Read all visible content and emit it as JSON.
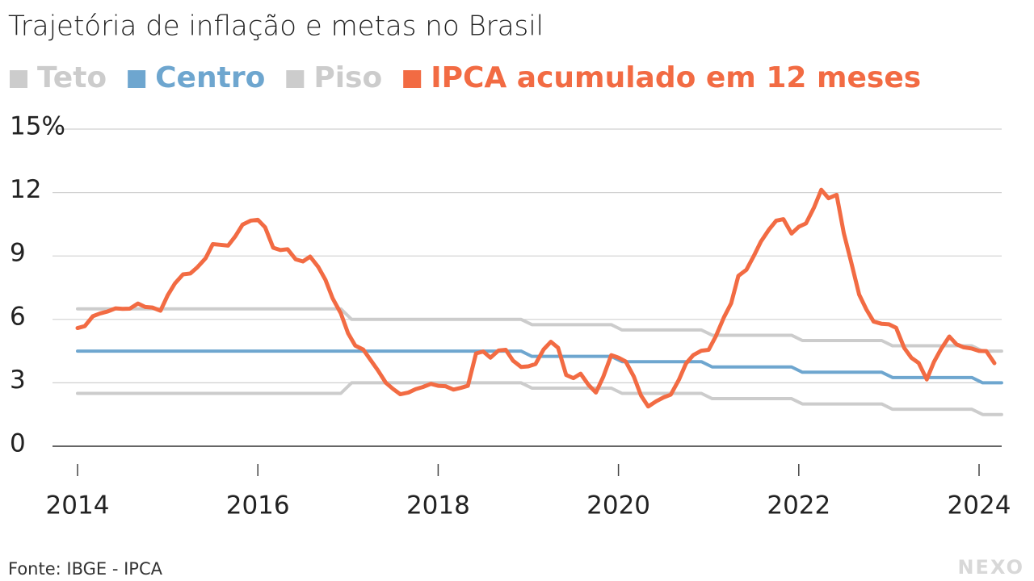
{
  "chart_data": {
    "type": "line",
    "title": "Trajetória de inflação e metas no Brasil",
    "source": "Fonte: IBGE - IPCA",
    "brand": "NEXO",
    "xlim": [
      2013.85,
      2024.35
    ],
    "xticks": [
      2014,
      2016,
      2018,
      2020,
      2022,
      2024
    ],
    "ylim": [
      0,
      15
    ],
    "yticks": [
      0,
      3,
      6,
      9,
      12,
      {
        "value": 15,
        "label": "15%"
      }
    ],
    "grid": true,
    "legend": "top",
    "series": [
      {
        "name": "Teto",
        "color": "#cccccc",
        "x": [
          2014,
          2016.92,
          2017.04,
          2018.92,
          2019.04,
          2019.92,
          2020.04,
          2020.92,
          2021.04,
          2021.92,
          2022.04,
          2022.92,
          2023.04,
          2023.92,
          2024.04,
          2024.25
        ],
        "values": [
          6.5,
          6.5,
          6,
          6,
          5.75,
          5.75,
          5.5,
          5.5,
          5.25,
          5.25,
          5,
          5,
          4.75,
          4.75,
          4.5,
          4.5
        ]
      },
      {
        "name": "Centro",
        "color": "#6ea6cf",
        "x": [
          2014,
          2016.92,
          2017.04,
          2018.92,
          2019.04,
          2019.92,
          2020.04,
          2020.92,
          2021.04,
          2021.92,
          2022.04,
          2022.92,
          2023.04,
          2023.92,
          2024.04,
          2024.25
        ],
        "values": [
          4.5,
          4.5,
          4.5,
          4.5,
          4.25,
          4.25,
          4,
          4,
          3.75,
          3.75,
          3.5,
          3.5,
          3.25,
          3.25,
          3,
          3
        ]
      },
      {
        "name": "Piso",
        "color": "#cccccc",
        "x": [
          2014,
          2016.92,
          2017.04,
          2018.92,
          2019.04,
          2019.92,
          2020.04,
          2020.92,
          2021.04,
          2021.92,
          2022.04,
          2022.92,
          2023.04,
          2023.92,
          2024.04,
          2024.25
        ],
        "values": [
          2.5,
          2.5,
          3,
          3,
          2.75,
          2.75,
          2.5,
          2.5,
          2.25,
          2.25,
          2,
          2,
          1.75,
          1.75,
          1.5,
          1.5
        ]
      },
      {
        "name": "IPCA acumulado em 12 meses",
        "color": "#f26b43",
        "x": [
          2014,
          2014.08,
          2014.17,
          2014.25,
          2014.33,
          2014.42,
          2014.5,
          2014.58,
          2014.67,
          2014.75,
          2014.83,
          2014.92,
          2015,
          2015.08,
          2015.17,
          2015.25,
          2015.33,
          2015.42,
          2015.5,
          2015.58,
          2015.67,
          2015.75,
          2015.83,
          2015.92,
          2016,
          2016.08,
          2016.17,
          2016.25,
          2016.33,
          2016.42,
          2016.5,
          2016.58,
          2016.67,
          2016.75,
          2016.83,
          2016.92,
          2017,
          2017.08,
          2017.17,
          2017.25,
          2017.33,
          2017.42,
          2017.5,
          2017.58,
          2017.67,
          2017.75,
          2017.83,
          2017.92,
          2018,
          2018.08,
          2018.17,
          2018.25,
          2018.33,
          2018.42,
          2018.5,
          2018.58,
          2018.67,
          2018.75,
          2018.83,
          2018.92,
          2019,
          2019.08,
          2019.17,
          2019.25,
          2019.33,
          2019.42,
          2019.5,
          2019.58,
          2019.67,
          2019.75,
          2019.83,
          2019.92,
          2020,
          2020.08,
          2020.17,
          2020.25,
          2020.33,
          2020.42,
          2020.5,
          2020.58,
          2020.67,
          2020.75,
          2020.83,
          2020.92,
          2021,
          2021.08,
          2021.17,
          2021.25,
          2021.33,
          2021.42,
          2021.5,
          2021.58,
          2021.67,
          2021.75,
          2021.83,
          2021.92,
          2022,
          2022.08,
          2022.17,
          2022.25,
          2022.33,
          2022.42,
          2022.5,
          2022.58,
          2022.67,
          2022.75,
          2022.83,
          2022.92,
          2023,
          2023.08,
          2023.17,
          2023.25,
          2023.33,
          2023.42,
          2023.5,
          2023.58,
          2023.67,
          2023.75,
          2023.83,
          2023.92,
          2024,
          2024.08,
          2024.17
        ],
        "values": [
          5.59,
          5.68,
          6.15,
          6.28,
          6.37,
          6.52,
          6.5,
          6.51,
          6.75,
          6.59,
          6.56,
          6.41,
          7.14,
          7.7,
          8.13,
          8.17,
          8.47,
          8.89,
          9.56,
          9.53,
          9.49,
          9.93,
          10.48,
          10.67,
          10.71,
          10.36,
          9.39,
          9.28,
          9.32,
          8.84,
          8.74,
          8.97,
          8.48,
          7.87,
          6.99,
          6.29,
          5.35,
          4.76,
          4.57,
          4.08,
          3.6,
          3.0,
          2.71,
          2.46,
          2.54,
          2.7,
          2.8,
          2.95,
          2.86,
          2.84,
          2.68,
          2.76,
          2.86,
          4.39,
          4.48,
          4.19,
          4.53,
          4.56,
          4.05,
          3.75,
          3.78,
          3.89,
          4.58,
          4.94,
          4.66,
          3.37,
          3.22,
          3.43,
          2.89,
          2.54,
          3.27,
          4.31,
          4.19,
          4.01,
          3.3,
          2.4,
          1.88,
          2.13,
          2.31,
          2.44,
          3.14,
          3.92,
          4.31,
          4.52,
          4.56,
          5.2,
          6.1,
          6.76,
          8.06,
          8.35,
          8.99,
          9.68,
          10.25,
          10.67,
          10.74,
          10.06,
          10.38,
          10.54,
          11.3,
          12.13,
          11.73,
          11.89,
          10.07,
          8.73,
          7.17,
          6.47,
          5.9,
          5.79,
          5.77,
          5.6,
          4.65,
          4.18,
          3.94,
          3.16,
          3.99,
          4.61,
          5.19,
          4.82,
          4.68,
          4.62,
          4.51,
          4.5,
          3.93
        ]
      }
    ]
  }
}
